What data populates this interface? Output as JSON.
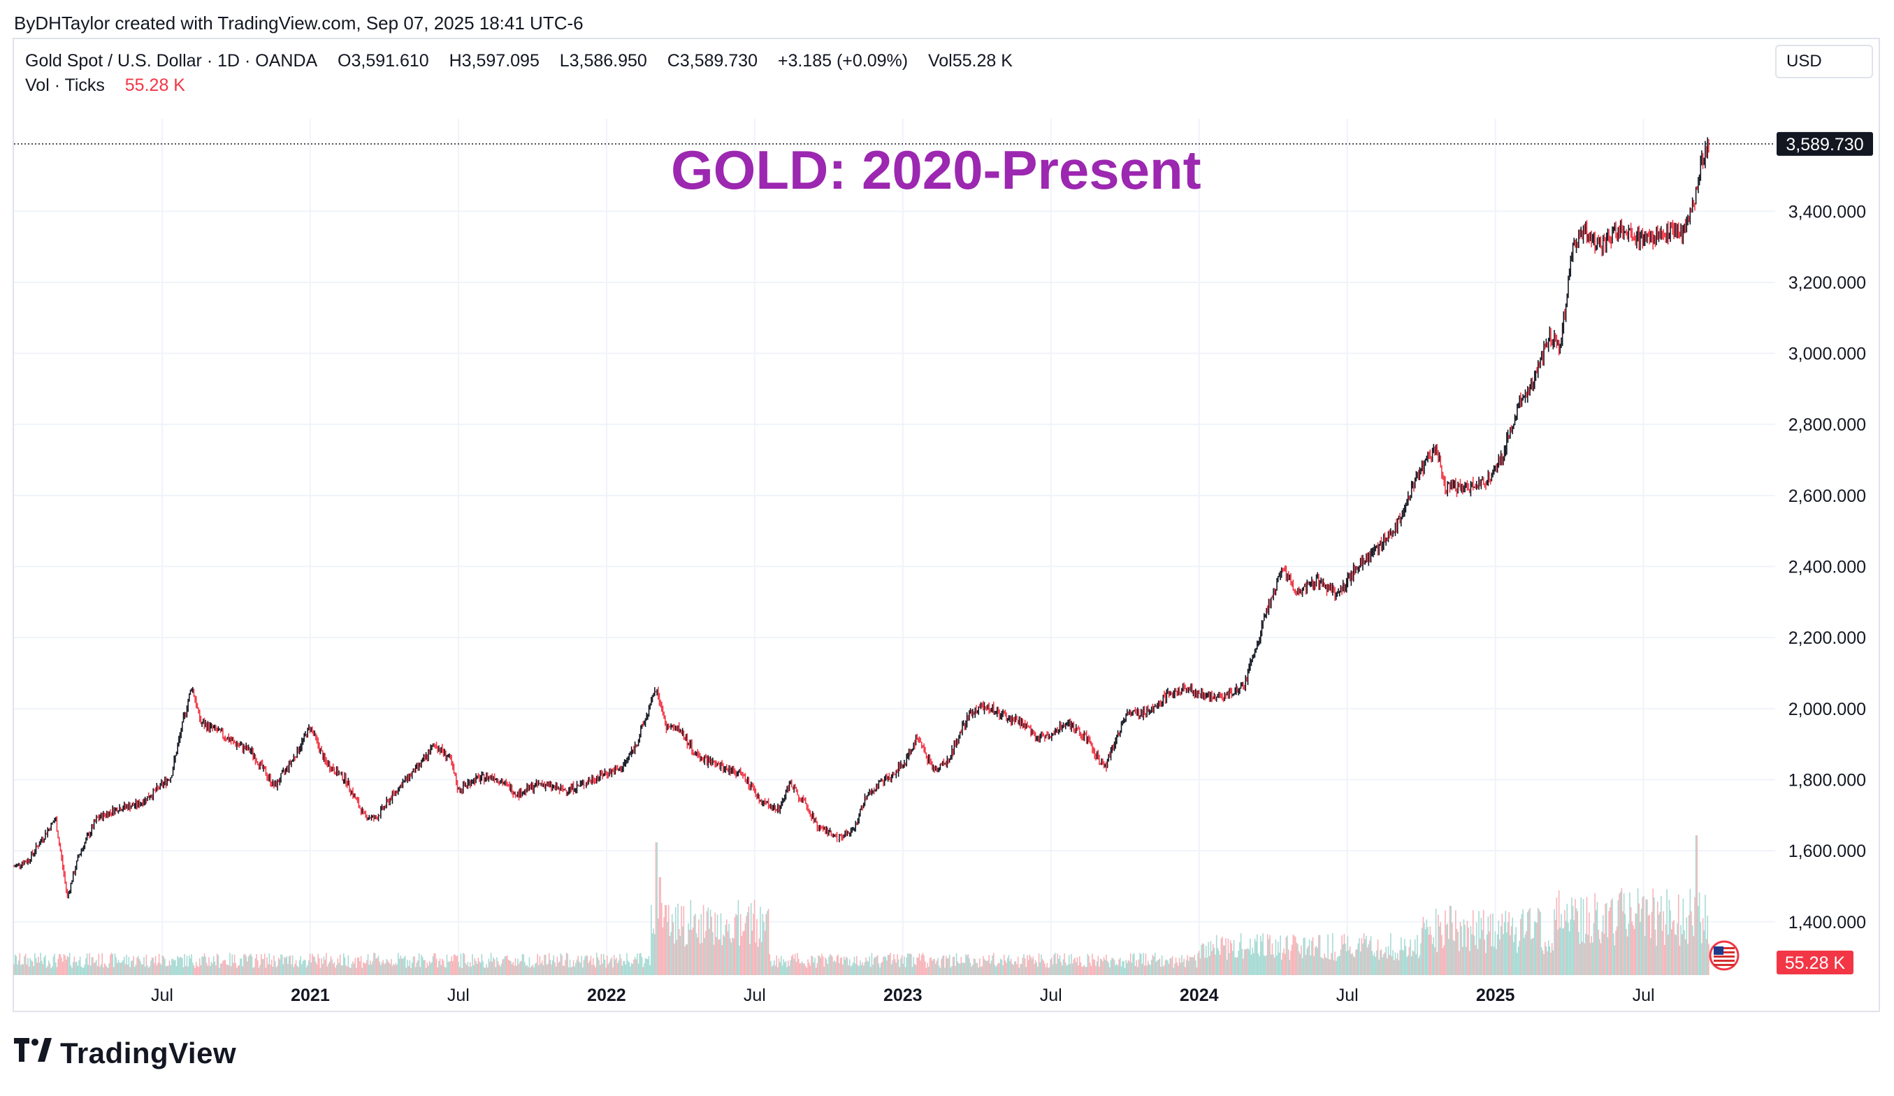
{
  "header": {
    "created_by": "ByDHTaylor created with TradingView.com, Sep 07, 2025 18:41 UTC-6"
  },
  "legend": {
    "symbol": "Gold Spot / U.S. Dollar · 1D · OANDA",
    "open": "O3,591.610",
    "high": "H3,597.095",
    "low": "L3,586.950",
    "close": "C3,589.730",
    "change": "+3.185 (+0.09%)",
    "vol": "Vol55.28 K",
    "vol_label": "Vol · Ticks",
    "vol_value": "55.28 K"
  },
  "currency_button": "USD",
  "footer": {
    "brand": "TradingView",
    "mark": "TV"
  },
  "colors": {
    "up": "#131722",
    "down": "#f23645",
    "annotation": "#9c27b0",
    "vol_up": "#a7dad4",
    "vol_down": "#f7b4b9",
    "grid": "#f0f3fa"
  },
  "chart_data": {
    "type": "candlestick",
    "title": "GOLD: 2020-Present",
    "symbol": "XAUUSD",
    "interval": "1D",
    "y_axis": {
      "min": 1250,
      "max": 3680,
      "ticks": [
        1400,
        1600,
        1800,
        2000,
        2200,
        2400,
        2600,
        2800,
        3000,
        3200,
        3400
      ],
      "tick_labels": [
        "1,400.000",
        "1,600.000",
        "1,800.000",
        "2,000.000",
        "2,200.000",
        "2,400.000",
        "2,600.000",
        "2,800.000",
        "3,000.000",
        "3,200.000",
        "3,400.000"
      ]
    },
    "x_axis": {
      "start": 2020.0,
      "end": 2025.85,
      "ticks": [
        {
          "t": 2020.5,
          "label": "Jul",
          "bold": false
        },
        {
          "t": 2021.0,
          "label": "2021",
          "bold": true
        },
        {
          "t": 2021.5,
          "label": "Jul",
          "bold": false
        },
        {
          "t": 2022.0,
          "label": "2022",
          "bold": true
        },
        {
          "t": 2022.5,
          "label": "Jul",
          "bold": false
        },
        {
          "t": 2023.0,
          "label": "2023",
          "bold": true
        },
        {
          "t": 2023.5,
          "label": "Jul",
          "bold": false
        },
        {
          "t": 2024.0,
          "label": "2024",
          "bold": true
        },
        {
          "t": 2024.5,
          "label": "Jul",
          "bold": false
        },
        {
          "t": 2025.0,
          "label": "2025",
          "bold": true
        },
        {
          "t": 2025.5,
          "label": "Jul",
          "bold": false
        }
      ]
    },
    "last_price": 3589.73,
    "last_price_label": "3,589.730",
    "volume_last_label": "55.28 K",
    "price_path": [
      [
        2020.0,
        1555
      ],
      [
        2020.05,
        1575
      ],
      [
        2020.1,
        1640
      ],
      [
        2020.14,
        1690
      ],
      [
        2020.18,
        1470
      ],
      [
        2020.22,
        1590
      ],
      [
        2020.28,
        1690
      ],
      [
        2020.35,
        1720
      ],
      [
        2020.42,
        1730
      ],
      [
        2020.48,
        1770
      ],
      [
        2020.53,
        1810
      ],
      [
        2020.57,
        1960
      ],
      [
        2020.6,
        2065
      ],
      [
        2020.63,
        1960
      ],
      [
        2020.68,
        1940
      ],
      [
        2020.75,
        1900
      ],
      [
        2020.8,
        1880
      ],
      [
        2020.88,
        1780
      ],
      [
        2020.95,
        1870
      ],
      [
        2021.0,
        1950
      ],
      [
        2021.05,
        1850
      ],
      [
        2021.12,
        1800
      ],
      [
        2021.18,
        1700
      ],
      [
        2021.22,
        1690
      ],
      [
        2021.3,
        1780
      ],
      [
        2021.38,
        1850
      ],
      [
        2021.42,
        1900
      ],
      [
        2021.47,
        1860
      ],
      [
        2021.5,
        1770
      ],
      [
        2021.55,
        1800
      ],
      [
        2021.62,
        1810
      ],
      [
        2021.7,
        1760
      ],
      [
        2021.78,
        1790
      ],
      [
        2021.85,
        1770
      ],
      [
        2021.9,
        1780
      ],
      [
        2021.95,
        1800
      ],
      [
        2022.0,
        1820
      ],
      [
        2022.05,
        1830
      ],
      [
        2022.1,
        1900
      ],
      [
        2022.17,
        2060
      ],
      [
        2022.2,
        1950
      ],
      [
        2022.25,
        1940
      ],
      [
        2022.3,
        1870
      ],
      [
        2022.37,
        1840
      ],
      [
        2022.45,
        1820
      ],
      [
        2022.52,
        1740
      ],
      [
        2022.58,
        1720
      ],
      [
        2022.62,
        1790
      ],
      [
        2022.67,
        1730
      ],
      [
        2022.72,
        1660
      ],
      [
        2022.78,
        1640
      ],
      [
        2022.83,
        1650
      ],
      [
        2022.88,
        1760
      ],
      [
        2022.93,
        1790
      ],
      [
        2023.0,
        1840
      ],
      [
        2023.05,
        1920
      ],
      [
        2023.1,
        1830
      ],
      [
        2023.15,
        1850
      ],
      [
        2023.22,
        1980
      ],
      [
        2023.28,
        2010
      ],
      [
        2023.33,
        1980
      ],
      [
        2023.4,
        1960
      ],
      [
        2023.45,
        1920
      ],
      [
        2023.5,
        1930
      ],
      [
        2023.55,
        1960
      ],
      [
        2023.62,
        1920
      ],
      [
        2023.68,
        1830
      ],
      [
        2023.75,
        1980
      ],
      [
        2023.82,
        1990
      ],
      [
        2023.88,
        2030
      ],
      [
        2023.95,
        2060
      ],
      [
        2024.0,
        2040
      ],
      [
        2024.08,
        2030
      ],
      [
        2024.15,
        2060
      ],
      [
        2024.22,
        2250
      ],
      [
        2024.28,
        2390
      ],
      [
        2024.33,
        2330
      ],
      [
        2024.4,
        2360
      ],
      [
        2024.47,
        2320
      ],
      [
        2024.53,
        2400
      ],
      [
        2024.6,
        2450
      ],
      [
        2024.67,
        2520
      ],
      [
        2024.73,
        2650
      ],
      [
        2024.8,
        2740
      ],
      [
        2024.83,
        2620
      ],
      [
        2024.87,
        2620
      ],
      [
        2024.92,
        2630
      ],
      [
        2024.97,
        2640
      ],
      [
        2025.02,
        2700
      ],
      [
        2025.08,
        2860
      ],
      [
        2025.13,
        2920
      ],
      [
        2025.18,
        3050
      ],
      [
        2025.22,
        3020
      ],
      [
        2025.26,
        3300
      ],
      [
        2025.3,
        3350
      ],
      [
        2025.35,
        3300
      ],
      [
        2025.42,
        3350
      ],
      [
        2025.48,
        3330
      ],
      [
        2025.53,
        3320
      ],
      [
        2025.58,
        3340
      ],
      [
        2025.63,
        3340
      ],
      [
        2025.67,
        3420
      ],
      [
        2025.7,
        3550
      ],
      [
        2025.72,
        3590
      ]
    ],
    "volume_spikes": [
      [
        2022.17,
        0.95
      ],
      [
        2022.18,
        0.7
      ],
      [
        2022.2,
        0.5
      ],
      [
        2025.68,
        1.0
      ]
    ]
  }
}
